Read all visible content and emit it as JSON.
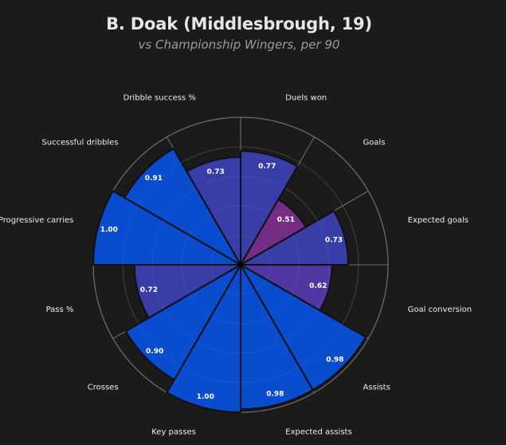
{
  "header": {
    "title": "B. Doak (Middlesbrough, 19)",
    "subtitle": "vs Championship Wingers, per 90"
  },
  "colors": {
    "background": "#1b1b1b",
    "grid": "#6e6e6e",
    "high": "#0a4fd8",
    "mid": "#3b3fb0",
    "low": "#7a2e8a"
  },
  "chart_data": {
    "type": "polar-bar",
    "title": "B. Doak (Middlesbrough, 19)",
    "subtitle": "vs Championship Wingers, per 90",
    "categories": [
      "Duels won",
      "Goals",
      "Expected goals",
      "Goal conversion",
      "Assists",
      "Expected assists",
      "Key passes",
      "Crosses",
      "Pass %",
      "Progressive carries",
      "Successful dribbles",
      "Dribble success %"
    ],
    "values": [
      0.77,
      0.51,
      0.73,
      0.62,
      0.98,
      0.98,
      1.0,
      0.9,
      0.72,
      1.0,
      0.91,
      0.73
    ],
    "value_labels": [
      "0.77",
      "0.51",
      "0.73",
      "0.62",
      "0.98",
      "0.98",
      "1.00",
      "0.90",
      "0.72",
      "1.00",
      "0.91",
      "0.73"
    ],
    "rlim": [
      0,
      1
    ],
    "grid": true,
    "legend": "none"
  }
}
